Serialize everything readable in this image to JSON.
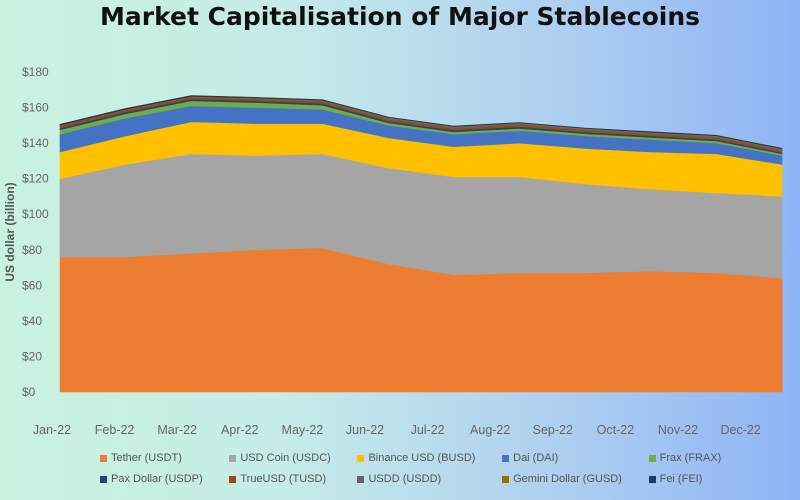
{
  "title": "Market Capitalisation of Major Stablecoins",
  "chart_data": {
    "type": "area",
    "stacked": true,
    "title": "Market Capitalisation of Major Stablecoins",
    "ylabel": "US dollar (billion)",
    "ylim": [
      0,
      180
    ],
    "yticks": [
      "$0",
      "$20",
      "$40",
      "$60",
      "$80",
      "$100",
      "$120",
      "$140",
      "$160",
      "$180"
    ],
    "categories": [
      "Jan-22",
      "Feb-22",
      "Mar-22",
      "Apr-22",
      "May-22",
      "Jun-22",
      "Jul-22",
      "Aug-22",
      "Sep-22",
      "Oct-22",
      "Nov-22",
      "Dec-22"
    ],
    "legend_position": "bottom",
    "series": [
      {
        "name": "Tether (USDT)",
        "color": "#ed7d31",
        "values": [
          76,
          76,
          78,
          80,
          81,
          72,
          66,
          67,
          67,
          68,
          67,
          64
        ]
      },
      {
        "name": "USD Coin (USDC)",
        "color": "#a5a5a5",
        "values": [
          44,
          52,
          56,
          53,
          53,
          54,
          55,
          54,
          50,
          46,
          45,
          46
        ]
      },
      {
        "name": "Binance USD (BUSD)",
        "color": "#ffc000",
        "values": [
          15,
          16,
          18,
          18,
          17,
          17,
          17,
          19,
          20,
          21,
          22,
          18
        ]
      },
      {
        "name": "Dai (DAI)",
        "color": "#4472c4",
        "values": [
          10,
          10,
          9,
          9,
          8,
          7,
          7,
          7,
          7,
          7,
          6,
          5
        ]
      },
      {
        "name": "Frax (FRAX)",
        "color": "#70ad47",
        "values": [
          2.5,
          2.5,
          2.8,
          2.8,
          2.3,
          1.4,
          1.3,
          1.3,
          1.3,
          1.2,
          1.2,
          1.0
        ]
      },
      {
        "name": "Pax Dollar (USDP)",
        "color": "#264478",
        "values": [
          1.0,
          1.0,
          1.0,
          1.0,
          1.0,
          1.0,
          1.0,
          1.0,
          0.9,
          0.9,
          0.9,
          0.8
        ]
      },
      {
        "name": "TrueUSD (TUSD)",
        "color": "#9e480e",
        "values": [
          1.4,
          1.3,
          1.2,
          1.2,
          1.0,
          1.0,
          1.0,
          1.0,
          1.0,
          1.0,
          1.0,
          1.0
        ]
      },
      {
        "name": "USDD (USDD)",
        "color": "#636363",
        "values": [
          0,
          0,
          0,
          0,
          0.5,
          0.7,
          0.7,
          0.7,
          0.7,
          0.7,
          0.7,
          0.7
        ]
      },
      {
        "name": "Gemini Dollar (GUSD)",
        "color": "#997300",
        "values": [
          0.2,
          0.2,
          0.3,
          0.3,
          0.3,
          0.3,
          0.3,
          0.3,
          0.3,
          0.3,
          0.3,
          0.3
        ]
      },
      {
        "name": "Fei (FEI)",
        "color": "#1f3864",
        "values": [
          0.5,
          0.5,
          0.5,
          0.4,
          0.3,
          0.3,
          0.3,
          0.3,
          0.3,
          0.3,
          0.3,
          0.3
        ]
      }
    ]
  }
}
